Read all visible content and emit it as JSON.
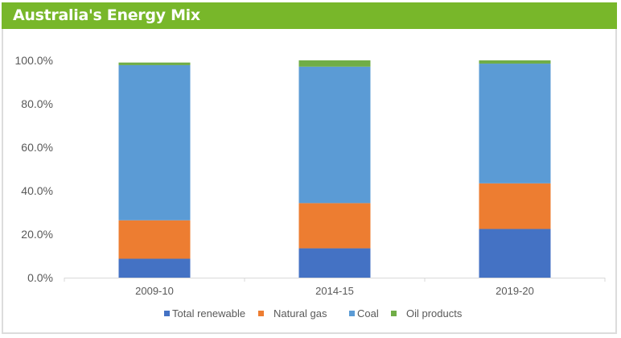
{
  "chart_data": {
    "type": "bar",
    "stacked": true,
    "title": "Australia's Energy Mix",
    "categories": [
      "2009-10",
      "2014-15",
      "2019-20"
    ],
    "series": [
      {
        "name": "Total renewable",
        "color": "#4472c4",
        "values": [
          8.7,
          13.5,
          22.4
        ]
      },
      {
        "name": "Natural gas",
        "color": "#ed7d31",
        "values": [
          17.7,
          20.8,
          21.0
        ]
      },
      {
        "name": "Coal",
        "color": "#5b9bd5",
        "values": [
          71.4,
          62.8,
          55.1
        ]
      },
      {
        "name": "Oil products",
        "color": "#70ad47",
        "values": [
          1.2,
          2.9,
          1.5
        ]
      }
    ],
    "ylim": [
      0,
      100
    ],
    "yticks": [
      "0.0%",
      "20.0%",
      "40.0%",
      "60.0%",
      "80.0%",
      "100.0%"
    ],
    "xlabel": "",
    "ylabel": "",
    "grid": false,
    "legend": "bottom",
    "title_bar_color": "#78b72a"
  }
}
